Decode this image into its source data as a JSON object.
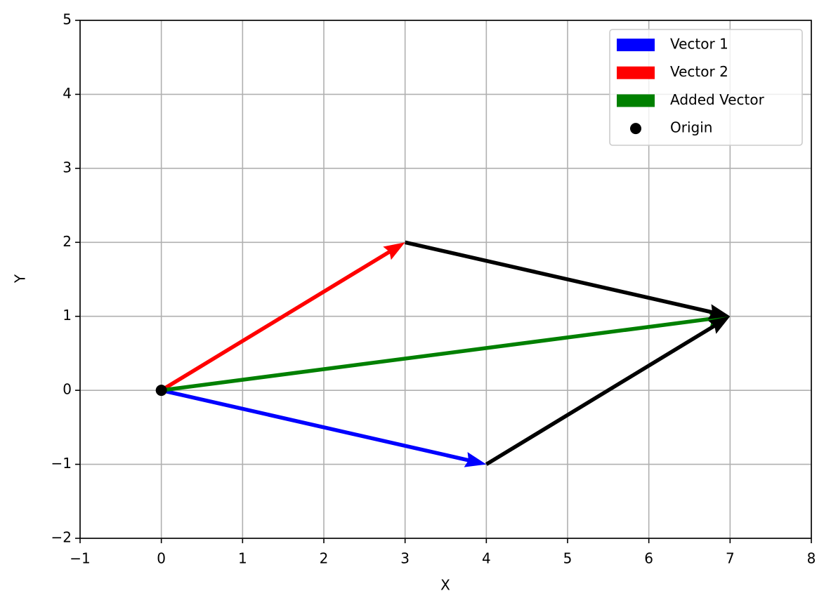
{
  "chart_data": {
    "type": "quiver",
    "xlabel": "X",
    "ylabel": "Y",
    "xlim": [
      -1,
      8
    ],
    "ylim": [
      -2,
      5
    ],
    "xticks": [
      {
        "value": -1,
        "label": "−1"
      },
      0,
      1,
      2,
      3,
      4,
      5,
      6,
      7,
      8
    ],
    "yticks": [
      {
        "value": -2,
        "label": "−2"
      },
      {
        "value": -1,
        "label": "−1"
      },
      0,
      1,
      2,
      3,
      4,
      5
    ],
    "grid": true,
    "legend": "upper right",
    "vectors": [
      {
        "name": "Vector 1",
        "color": "#0000ff",
        "x": 0,
        "y": 0,
        "u": 4,
        "v": -1
      },
      {
        "name": "Vector 2",
        "color": "#ff0000",
        "x": 0,
        "y": 0,
        "u": 3,
        "v": 2
      },
      {
        "name": "Added Vector",
        "color": "#008000",
        "x": 0,
        "y": 0,
        "u": 7,
        "v": 1
      },
      {
        "color": "#000000",
        "x": 3,
        "y": 2,
        "u": 4,
        "v": -1
      },
      {
        "color": "#000000",
        "x": 4,
        "y": -1,
        "u": 3,
        "v": 2
      }
    ],
    "points": {
      "name": "Origin",
      "color": "#000000",
      "x": [
        0
      ],
      "y": [
        0
      ]
    }
  }
}
